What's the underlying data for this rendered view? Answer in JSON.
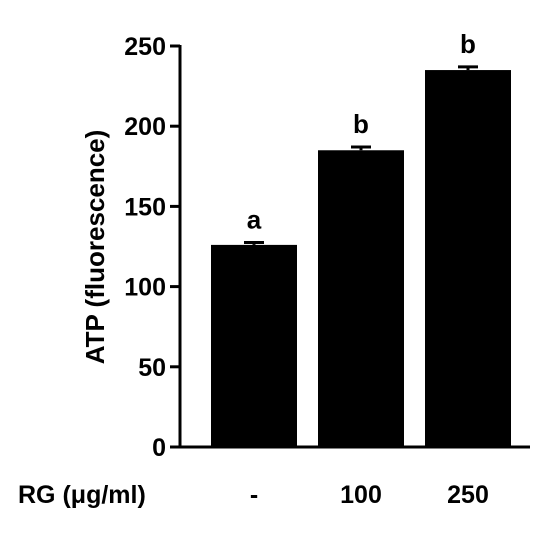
{
  "chart_data": {
    "type": "bar",
    "categories": [
      "-",
      "100",
      "250"
    ],
    "values": [
      126,
      185,
      235
    ],
    "errors": [
      1.5,
      2,
      2
    ],
    "significance": [
      "a",
      "b",
      "b"
    ],
    "ylabel": "ATP (fluorescence)",
    "group_label": "RG (μg/ml)",
    "ylim": [
      0,
      250
    ],
    "yticks": [
      0,
      50,
      100,
      150,
      200,
      250
    ],
    "grid": false,
    "bar_color": "#000000"
  }
}
